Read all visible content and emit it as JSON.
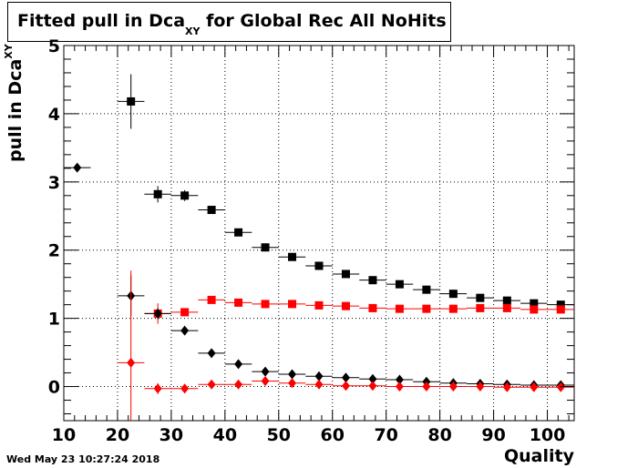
{
  "title": {
    "main": "Fitted pull in Dca",
    "sub": "XY",
    "rest": " for Global Rec All NoHits"
  },
  "ylabel": {
    "main": "pull in Dca",
    "sub": "XY"
  },
  "xlabel": "Quality",
  "datestamp": "Wed May 23 10:27:24 2018",
  "chart_data": {
    "type": "scatter",
    "xlim": [
      10,
      105
    ],
    "ylim": [
      -0.5,
      5
    ],
    "xticks": [
      10,
      20,
      30,
      40,
      50,
      60,
      70,
      80,
      90,
      100
    ],
    "yticks": [
      0,
      1,
      2,
      3,
      4,
      5
    ],
    "grid": true,
    "series": [
      {
        "marker": "square",
        "color": "#000000",
        "x": [
          22.5,
          27.5,
          32.5,
          37.5,
          42.5,
          47.5,
          52.5,
          57.5,
          62.5,
          67.5,
          72.5,
          77.5,
          82.5,
          87.5,
          92.5,
          97.5,
          102.5
        ],
        "y": [
          4.18,
          2.82,
          2.8,
          2.59,
          2.26,
          2.04,
          1.9,
          1.77,
          1.65,
          1.56,
          1.5,
          1.42,
          1.36,
          1.3,
          1.26,
          1.22,
          1.2
        ],
        "yerr": [
          0.4,
          0.12,
          0.08,
          0.04,
          0.03,
          0.02,
          0.02,
          0.02,
          0.02,
          0.02,
          0.02,
          0.02,
          0.02,
          0.02,
          0.02,
          0.02,
          0.02
        ]
      },
      {
        "marker": "square",
        "color": "#ff0000",
        "x": [
          27.5,
          32.5,
          37.5,
          42.5,
          47.5,
          52.5,
          57.5,
          62.5,
          67.5,
          72.5,
          77.5,
          82.5,
          87.5,
          92.5,
          97.5,
          102.5
        ],
        "y": [
          1.07,
          1.09,
          1.27,
          1.23,
          1.21,
          1.21,
          1.19,
          1.18,
          1.15,
          1.14,
          1.14,
          1.14,
          1.15,
          1.15,
          1.13,
          1.13
        ],
        "yerr": [
          0.15,
          0.05,
          0.03,
          0.02,
          0.02,
          0.02,
          0.02,
          0.02,
          0.02,
          0.02,
          0.02,
          0.02,
          0.02,
          0.02,
          0.02,
          0.02
        ]
      },
      {
        "marker": "diamond",
        "color": "#000000",
        "x": [
          12.5,
          22.5,
          27.5,
          32.5,
          37.5,
          42.5,
          47.5,
          52.5,
          57.5,
          62.5,
          67.5,
          72.5,
          77.5,
          82.5,
          87.5,
          92.5,
          97.5,
          102.5
        ],
        "y": [
          3.21,
          1.33,
          1.07,
          0.82,
          0.49,
          0.33,
          0.22,
          0.18,
          0.15,
          0.13,
          0.11,
          0.1,
          0.07,
          0.05,
          0.04,
          0.03,
          0.02,
          0.02
        ],
        "yerr": [
          0.0,
          0.3,
          0.08,
          0.06,
          0.03,
          0.02,
          0.02,
          0.02,
          0.01,
          0.01,
          0.01,
          0.01,
          0.01,
          0.01,
          0.01,
          0.01,
          0.01,
          0.01
        ]
      },
      {
        "marker": "diamond",
        "color": "#ff0000",
        "x": [
          22.5,
          27.5,
          32.5,
          37.5,
          42.5,
          47.5,
          52.5,
          57.5,
          62.5,
          67.5,
          72.5,
          77.5,
          82.5,
          87.5,
          92.5,
          97.5,
          102.5
        ],
        "y": [
          0.35,
          -0.03,
          -0.03,
          0.03,
          0.03,
          0.08,
          0.05,
          0.03,
          0.01,
          0.01,
          0.0,
          0.0,
          0.0,
          0.0,
          -0.01,
          -0.01,
          -0.01
        ],
        "yerr": [
          1.35,
          0.08,
          0.04,
          0.02,
          0.02,
          0.02,
          0.02,
          0.02,
          0.02,
          0.02,
          0.02,
          0.02,
          0.02,
          0.02,
          0.02,
          0.02,
          0.02
        ]
      }
    ]
  }
}
